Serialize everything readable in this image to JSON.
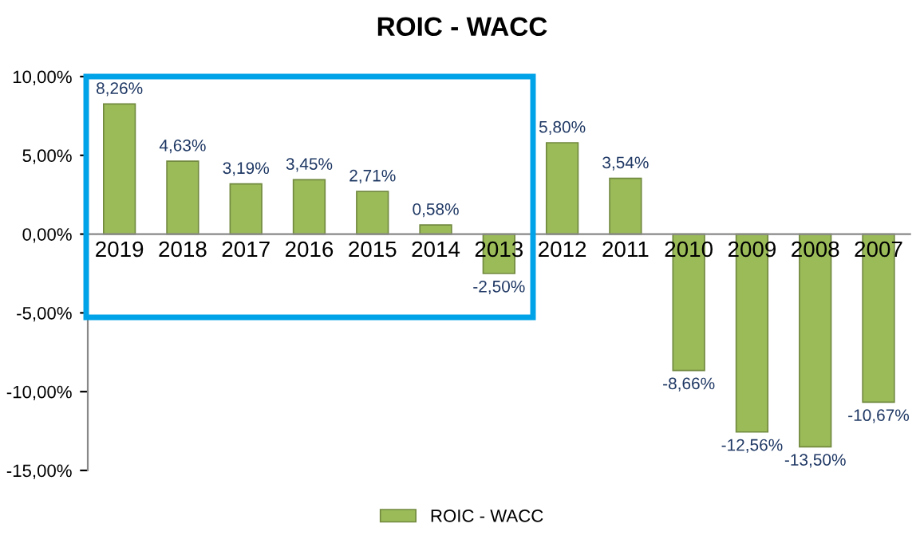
{
  "chart_data": {
    "type": "bar",
    "title": "ROIC - WACC",
    "categories": [
      "2019",
      "2018",
      "2017",
      "2016",
      "2015",
      "2014",
      "2013",
      "2012",
      "2011",
      "2010",
      "2009",
      "2008",
      "2007"
    ],
    "series": [
      {
        "name": "ROIC - WACC",
        "color": "#9bbb59",
        "values": [
          8.26,
          4.63,
          3.19,
          3.45,
          2.71,
          0.58,
          -2.5,
          5.8,
          3.54,
          -8.66,
          -12.56,
          -13.5,
          -10.67
        ],
        "value_labels": [
          "8,26%",
          "4,63%",
          "3,19%",
          "3,45%",
          "2,71%",
          "0,58%",
          "-2,50%",
          "5,80%",
          "3,54%",
          "-8,66%",
          "-12,56%",
          "-13,50%",
          "-10,67%"
        ]
      }
    ],
    "ylim": [
      -15,
      10
    ],
    "yticks": [
      {
        "value": 10,
        "label": "10,00%"
      },
      {
        "value": 5,
        "label": "5,00%"
      },
      {
        "value": 0,
        "label": "0,00%"
      },
      {
        "value": -5,
        "label": "-5,00%"
      },
      {
        "value": -10,
        "label": "-10,00%"
      },
      {
        "value": -15,
        "label": "-15,00%"
      }
    ],
    "grid": false,
    "legend": "bottom"
  }
}
